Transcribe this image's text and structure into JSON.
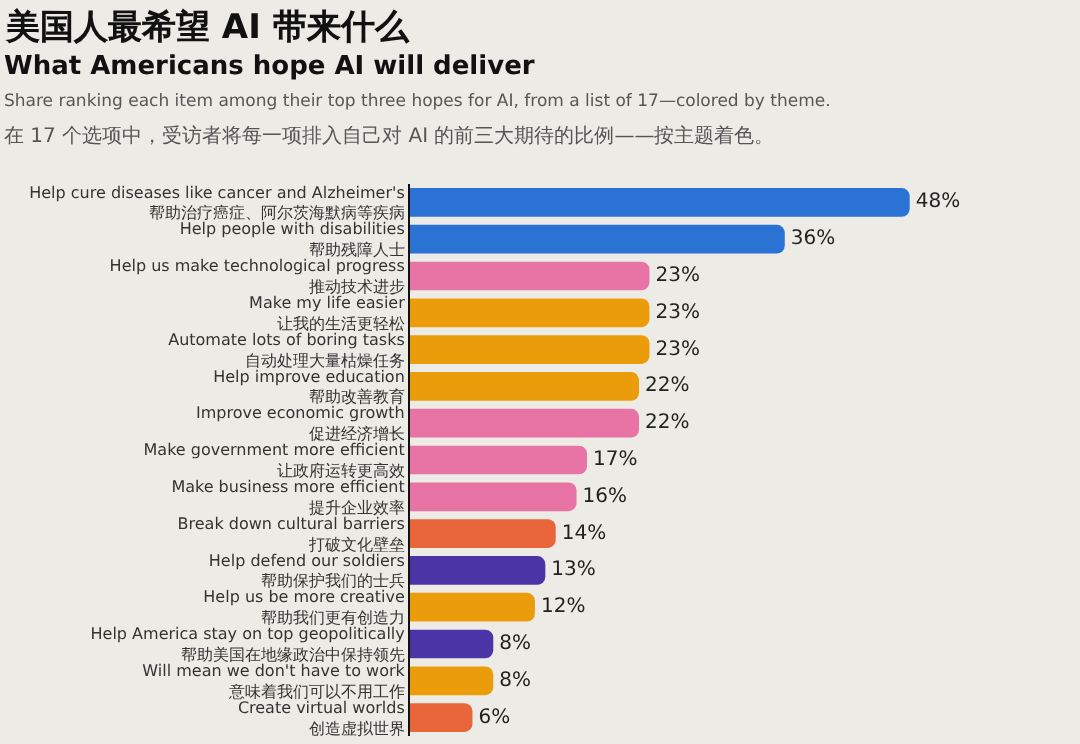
{
  "chart_data": {
    "type": "bar",
    "orientation": "horizontal",
    "title": "美国人最希望 AI 带来什么",
    "subtitle": "What Americans hope AI will deliver",
    "annotations": [
      "Share ranking each item among their top three hopes for AI, from a list of 17—colored by theme.",
      "在 17 个选项中，受访者将每一项排入自己对 AI 的前三大期待的比例——按主题着色。"
    ],
    "categories": [
      "Help cure diseases like cancer and Alzheimer's\n帮助治疗癌症、阿尔茨海默病等疾病",
      "Help people with disabilities\n帮助残障人士",
      "Help us make technological progress\n推动技术进步",
      "Make my life easier\n让我的生活更轻松",
      "Automate lots of boring tasks\n自动处理大量枯燥任务",
      "Help improve education\n帮助改善教育",
      "Improve economic growth\n促进经济增长",
      "Make government more efficient\n让政府运转更高效",
      "Make business more efficient\n提升企业效率",
      "Break down cultural barriers\n打破文化壁垒",
      "Help defend our soldiers\n帮助保护我们的士兵",
      "Help us be more creative\n帮助我们更有创造力",
      "Help America stay on top geopolitically\n帮助美国在地缘政治中保持领先",
      "Will mean we don't have to work\n意味着我们可以不用工作",
      "Create virtual worlds\n创造虚拟世界"
    ],
    "values": [
      48,
      36,
      23,
      23,
      23,
      22,
      22,
      17,
      16,
      14,
      13,
      12,
      8,
      8,
      6
    ],
    "value_labels": [
      "48%",
      "36%",
      "23%",
      "23%",
      "23%",
      "22%",
      "22%",
      "17%",
      "16%",
      "14%",
      "13%",
      "12%",
      "8%",
      "8%",
      "6%"
    ],
    "colors": [
      "#2a72d4",
      "#2a72d4",
      "#e874a6",
      "#eb9c0a",
      "#eb9c0a",
      "#eb9c0a",
      "#e874a6",
      "#e874a6",
      "#e874a6",
      "#e8663a",
      "#4b35a6",
      "#eb9c0a",
      "#4b35a6",
      "#eb9c0a",
      "#e8663a"
    ]
  }
}
